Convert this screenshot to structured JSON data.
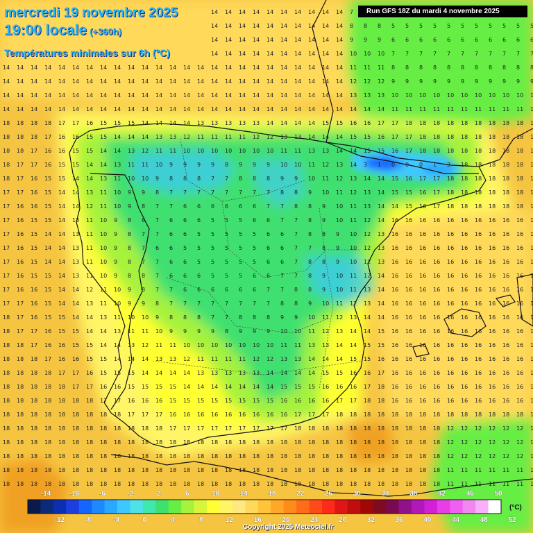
{
  "title": {
    "date": "mercredi 19 novembre 2025",
    "time": "19:00 locale",
    "time_offset": "(+360h)",
    "subtitle": "Températures minimales sur 6h (°C)"
  },
  "run_banner": "Run GFS 18Z du mardi 4 novembre 2025",
  "copyright": "Copyright 2025 Meteociel.fr",
  "legend": {
    "unit": "(°C)",
    "top_ticks": [
      "-14",
      "-10",
      "-6",
      "-2",
      "2",
      "6",
      "10",
      "14",
      "18",
      "22",
      "26",
      "30",
      "34",
      "38",
      "42",
      "46",
      "50"
    ],
    "bottom_ticks": [
      "-12",
      "-8",
      "-4",
      "0",
      "4",
      "8",
      "12",
      "16",
      "20",
      "24",
      "28",
      "32",
      "36",
      "40",
      "44",
      "48",
      "52"
    ],
    "colors": [
      "#0a1a4a",
      "#0b2a7a",
      "#0a2fb0",
      "#1e3fe0",
      "#1565ff",
      "#1e88ff",
      "#29a8ff",
      "#3fc8ff",
      "#4fe0e8",
      "#40e8b0",
      "#3fe070",
      "#66ee44",
      "#a6f23c",
      "#d9f53a",
      "#ffff33",
      "#fff566",
      "#ffe880",
      "#ffd95a",
      "#ffc43a",
      "#ffa726",
      "#ff8c1a",
      "#ff6d1a",
      "#ff4a1a",
      "#ff2a1a",
      "#e01515",
      "#c00d0d",
      "#a00808",
      "#800a20",
      "#7a0a50",
      "#90128a",
      "#b018b8",
      "#d020d8",
      "#e83ee8",
      "#f060f0",
      "#f088f0",
      "#f8b0f8",
      "#ffffff"
    ]
  },
  "map_fields": {
    "colors": {
      "cold_core": "#1565ff",
      "cyan": "#3fc8ff",
      "green": "#3fe070",
      "light_green": "#7cee44",
      "yellow": "#ffff33",
      "pale_yellow": "#fff566",
      "light_orange": "#ffd95a",
      "orange": "#f5c542",
      "dark_orange": "#f0a020"
    }
  }
}
